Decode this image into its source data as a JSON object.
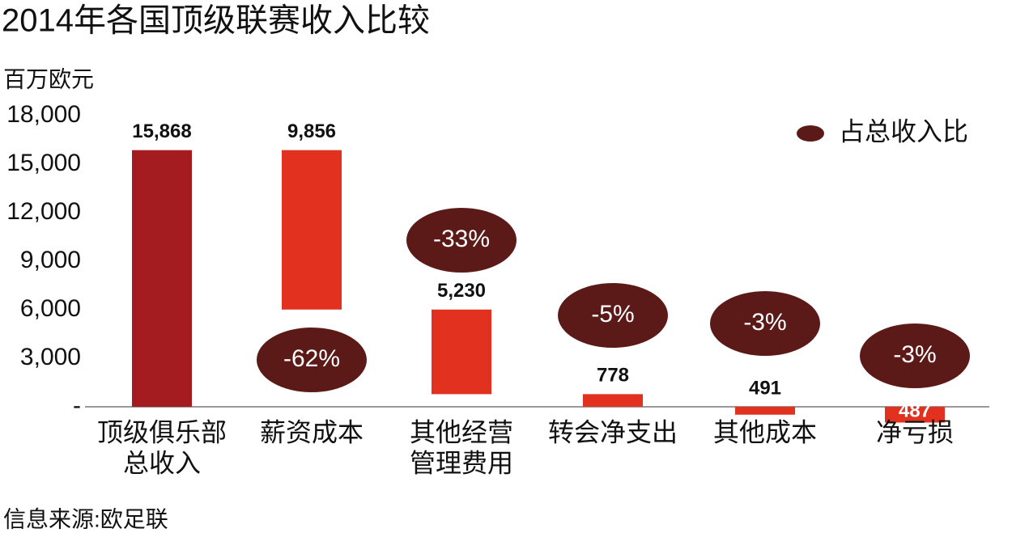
{
  "chart_data": {
    "type": "waterfall",
    "title": "2014年各国顶级联赛收入比较",
    "y_label": "百万欧元",
    "source": "信息来源:欧足联",
    "legend": "占总收入比",
    "categories": [
      [
        "顶级俱乐部",
        "总收入"
      ],
      [
        "薪资成本"
      ],
      [
        "其他经营",
        "管理费用"
      ],
      [
        "转会净支出"
      ],
      [
        "其他成本"
      ],
      [
        "净亏损"
      ]
    ],
    "values": [
      15868,
      9856,
      5230,
      778,
      491,
      487
    ],
    "value_labels": [
      "15,868",
      "9,856",
      "5,230",
      "778",
      "491",
      "487"
    ],
    "shares": [
      null,
      {
        "value": -62,
        "label": "-62%"
      },
      {
        "value": -33,
        "label": "-33%"
      },
      {
        "value": -5,
        "label": "-5%"
      },
      {
        "value": -3,
        "label": "-3%"
      },
      {
        "value": -3,
        "label": "-3%"
      }
    ],
    "colors": {
      "total": "#a51c20",
      "decrease": "#e2311f",
      "share": "#5b1a17"
    },
    "ylim": [
      0,
      18000
    ],
    "yticks": [
      {
        "value": 0,
        "label": "-"
      },
      {
        "value": 3000,
        "label": "3,000"
      },
      {
        "value": 6000,
        "label": "6,000"
      },
      {
        "value": 9000,
        "label": "9,000"
      },
      {
        "value": 12000,
        "label": "12,000"
      },
      {
        "value": 15000,
        "label": "15,000"
      },
      {
        "value": 18000,
        "label": "18,000"
      }
    ]
  }
}
